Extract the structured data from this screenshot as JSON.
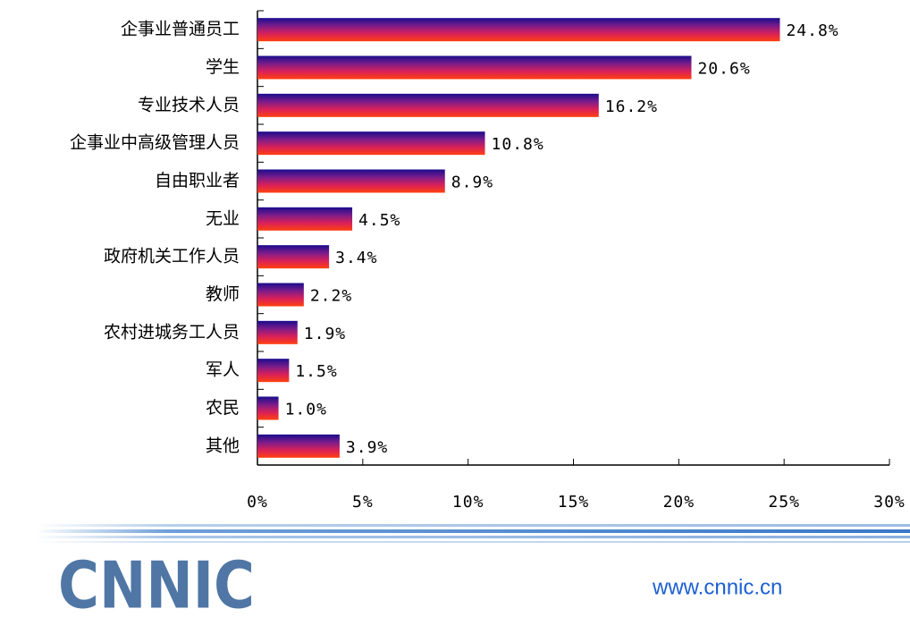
{
  "chart_data": {
    "type": "hbar",
    "categories": [
      "企事业普通员工",
      "学生",
      "专业技术人员",
      "企事业中高级管理人员",
      "自由职业者",
      "无业",
      "政府机关工作人员",
      "教师",
      "农村进城务工人员",
      "军人",
      "农民",
      "其他"
    ],
    "values": [
      24.8,
      20.6,
      16.2,
      10.8,
      8.9,
      4.5,
      3.4,
      2.2,
      1.9,
      1.5,
      1.0,
      3.9
    ],
    "value_labels": [
      "24.8%",
      "20.6%",
      "16.2%",
      "10.8%",
      "8.9%",
      "4.5%",
      "3.4%",
      "2.2%",
      "1.9%",
      "1.5%",
      "1.0%",
      "3.9%"
    ],
    "colors": [
      "#1a0c8c",
      "#7a1c8a",
      "#d8205a",
      "#ff4010"
    ],
    "xlim": [
      0,
      30
    ],
    "xticks": [
      {
        "value": 0,
        "label": "0%"
      },
      {
        "value": 5,
        "label": "5%"
      },
      {
        "value": 10,
        "label": "10%"
      },
      {
        "value": 15,
        "label": "15%"
      },
      {
        "value": 20,
        "label": "20%"
      },
      {
        "value": 25,
        "label": "25%"
      },
      {
        "value": 30,
        "label": "30%"
      }
    ]
  },
  "footer": {
    "logo": "CNNIC",
    "url": "www.cnnic.cn"
  }
}
